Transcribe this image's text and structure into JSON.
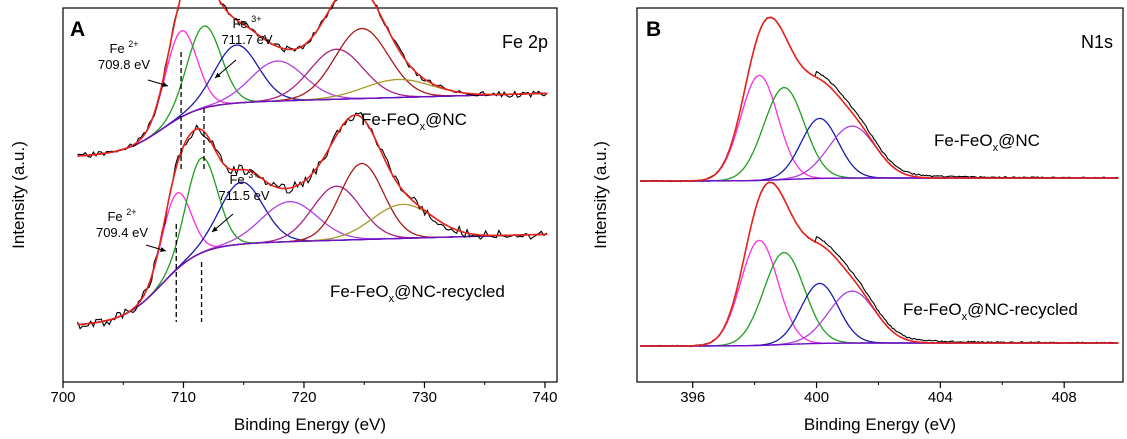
{
  "chart_data": [
    {
      "type": "line",
      "panel": "A",
      "title": "Fe 2p",
      "xlabel": "Binding Energy (eV)",
      "ylabel": "Intensity (a.u.)",
      "xlim": [
        700,
        741
      ],
      "xticks": [
        700,
        710,
        720,
        730,
        740
      ],
      "samples": [
        {
          "label": "Fe-FeO",
          "label_sub": "x",
          "label_tail": "@NC",
          "annotations": [
            {
              "ion": "Fe",
              "charge": "2+",
              "energy": "709.8 eV",
              "x": 709.8
            },
            {
              "ion": "Fe",
              "charge": "3+",
              "energy": "711.7 eV",
              "x": 711.7
            }
          ]
        },
        {
          "label": "Fe-FeO",
          "label_sub": "x",
          "label_tail": "@NC-recycled",
          "annotations": [
            {
              "ion": "Fe",
              "charge": "2+",
              "energy": "709.4 eV",
              "x": 709.4
            },
            {
              "ion": "Fe",
              "charge": "3+",
              "energy": "711.5 eV",
              "x": 711.5
            }
          ]
        }
      ],
      "fit_colors": {
        "raw": "#000000",
        "envelope": "#e8231b",
        "background": "#6a0fc6",
        "fe2": "#ff2de0",
        "fe3": "#1e9e1e",
        "sat1": "#1a1aa8",
        "sat2": "#b040e0",
        "sat3": "#a8208a",
        "sat4": "#a81a1a",
        "sat5": "#a89a2a"
      }
    },
    {
      "type": "line",
      "panel": "B",
      "title": "N1s",
      "xlabel": "Binding Energy (eV)",
      "ylabel": "Intensity (a.u.)",
      "xlim": [
        394.2,
        409.9
      ],
      "xticks": [
        396,
        400,
        404,
        408
      ],
      "samples": [
        {
          "label": "Fe-FeO",
          "label_sub": "x",
          "label_tail": "@NC"
        },
        {
          "label": "Fe-FeO",
          "label_sub": "x",
          "label_tail": "@NC-recycled"
        }
      ],
      "fit_colors": {
        "raw": "#000000",
        "envelope": "#e8231b",
        "background": "#6a0fc6",
        "pyridinic": "#ff2de0",
        "pyrrolic": "#1e9e1e",
        "graphitic": "#1a1aa8",
        "oxidized": "#b040e0"
      }
    }
  ]
}
